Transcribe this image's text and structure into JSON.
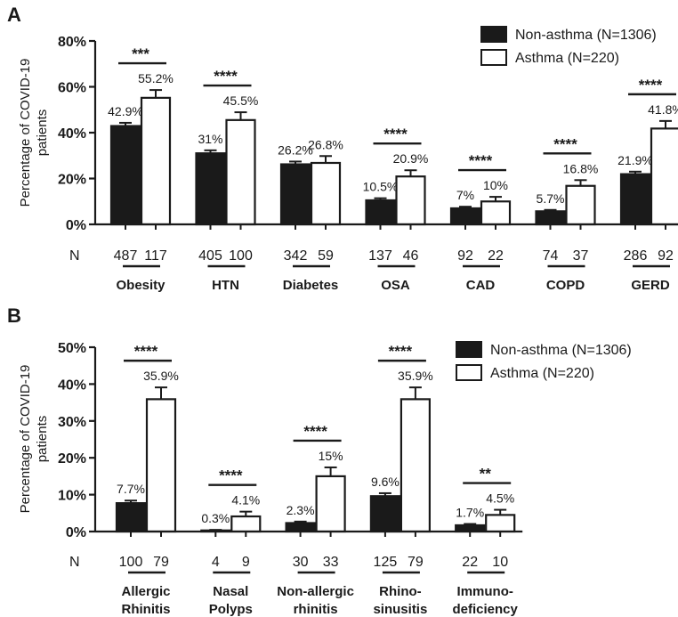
{
  "colors": {
    "non_asthma_fill": "#1a1a1a",
    "asthma_fill": "#ffffff",
    "stroke": "#1a1a1a"
  },
  "chart_data": [
    {
      "panel_label": "A",
      "type": "bar",
      "ylabel_line1": "Percentage of COVID-19",
      "ylabel_line2": "patients",
      "ylim": [
        0,
        80
      ],
      "yticks": [
        0,
        20,
        40,
        60,
        80
      ],
      "ytick_labels": [
        "0%",
        "20%",
        "40%",
        "60%",
        "80%"
      ],
      "n_label": "N",
      "legend": [
        "Non-asthma (N=1306)",
        "Asthma (N=220)"
      ],
      "legend_position": "top-right",
      "groups": [
        {
          "name": [
            "Obesity"
          ],
          "values": [
            42.9,
            55.2
          ],
          "labels": [
            "42.9%",
            "55.2%"
          ],
          "errors": [
            1.4,
            3.4
          ],
          "n": [
            "487",
            "117"
          ],
          "sig": "***"
        },
        {
          "name": [
            "HTN"
          ],
          "values": [
            31.0,
            45.5
          ],
          "labels": [
            "31%",
            "45.5%"
          ],
          "errors": [
            1.3,
            3.4
          ],
          "n": [
            "405",
            "100"
          ],
          "sig": "****"
        },
        {
          "name": [
            "Diabetes"
          ],
          "values": [
            26.2,
            26.8
          ],
          "labels": [
            "26.2%",
            "26.8%"
          ],
          "errors": [
            1.2,
            3.0
          ],
          "n": [
            "342",
            "59"
          ],
          "sig": ""
        },
        {
          "name": [
            "OSA"
          ],
          "values": [
            10.5,
            20.9
          ],
          "labels": [
            "10.5%",
            "20.9%"
          ],
          "errors": [
            0.9,
            2.7
          ],
          "n": [
            "137",
            "46"
          ],
          "sig": "****"
        },
        {
          "name": [
            "CAD"
          ],
          "values": [
            7.0,
            10.0
          ],
          "labels": [
            "7%",
            "10%"
          ],
          "errors": [
            0.7,
            2.0
          ],
          "n": [
            "92",
            "22"
          ],
          "sig": "****"
        },
        {
          "name": [
            "COPD"
          ],
          "values": [
            5.7,
            16.8
          ],
          "labels": [
            "5.7%",
            "16.8%"
          ],
          "errors": [
            0.6,
            2.5
          ],
          "n": [
            "74",
            "37"
          ],
          "sig": "****"
        },
        {
          "name": [
            "GERD"
          ],
          "values": [
            21.9,
            41.8
          ],
          "labels": [
            "21.9%",
            "41.8%"
          ],
          "errors": [
            1.1,
            3.3
          ],
          "n": [
            "286",
            "92"
          ],
          "sig": "****"
        }
      ]
    },
    {
      "panel_label": "B",
      "type": "bar",
      "ylabel_line1": "Percentage of COVID-19",
      "ylabel_line2": "patients",
      "ylim": [
        0,
        50
      ],
      "yticks": [
        0,
        10,
        20,
        30,
        40,
        50
      ],
      "ytick_labels": [
        "0%",
        "10%",
        "20%",
        "30%",
        "40%",
        "50%"
      ],
      "n_label": "N",
      "legend": [
        "Non-asthma (N=1306)",
        "Asthma (N=220)"
      ],
      "legend_position": "top-right",
      "groups": [
        {
          "name": [
            "Allergic",
            "Rhinitis"
          ],
          "values": [
            7.7,
            35.9
          ],
          "labels": [
            "7.7%",
            "35.9%"
          ],
          "errors": [
            0.7,
            3.2
          ],
          "n": [
            "100",
            "79"
          ],
          "sig": "****"
        },
        {
          "name": [
            "Nasal",
            "Polyps"
          ],
          "values": [
            0.3,
            4.1
          ],
          "labels": [
            "0.3%",
            "4.1%"
          ],
          "errors": [
            0.15,
            1.3
          ],
          "n": [
            "4",
            "9"
          ],
          "sig": "****"
        },
        {
          "name": [
            "Non-allergic",
            "rhinitis"
          ],
          "values": [
            2.3,
            15.0
          ],
          "labels": [
            "2.3%",
            "15%"
          ],
          "errors": [
            0.4,
            2.4
          ],
          "n": [
            "30",
            "33"
          ],
          "sig": "****"
        },
        {
          "name": [
            "Rhino-",
            "sinusitis"
          ],
          "values": [
            9.6,
            35.9
          ],
          "labels": [
            "9.6%",
            "35.9%"
          ],
          "errors": [
            0.8,
            3.2
          ],
          "n": [
            "125",
            "79"
          ],
          "sig": "****"
        },
        {
          "name": [
            "Immuno-",
            "deficiency"
          ],
          "values": [
            1.7,
            4.5
          ],
          "labels": [
            "1.7%",
            "4.5%"
          ],
          "errors": [
            0.35,
            1.4
          ],
          "n": [
            "22",
            "10"
          ],
          "sig": "**"
        }
      ]
    }
  ]
}
